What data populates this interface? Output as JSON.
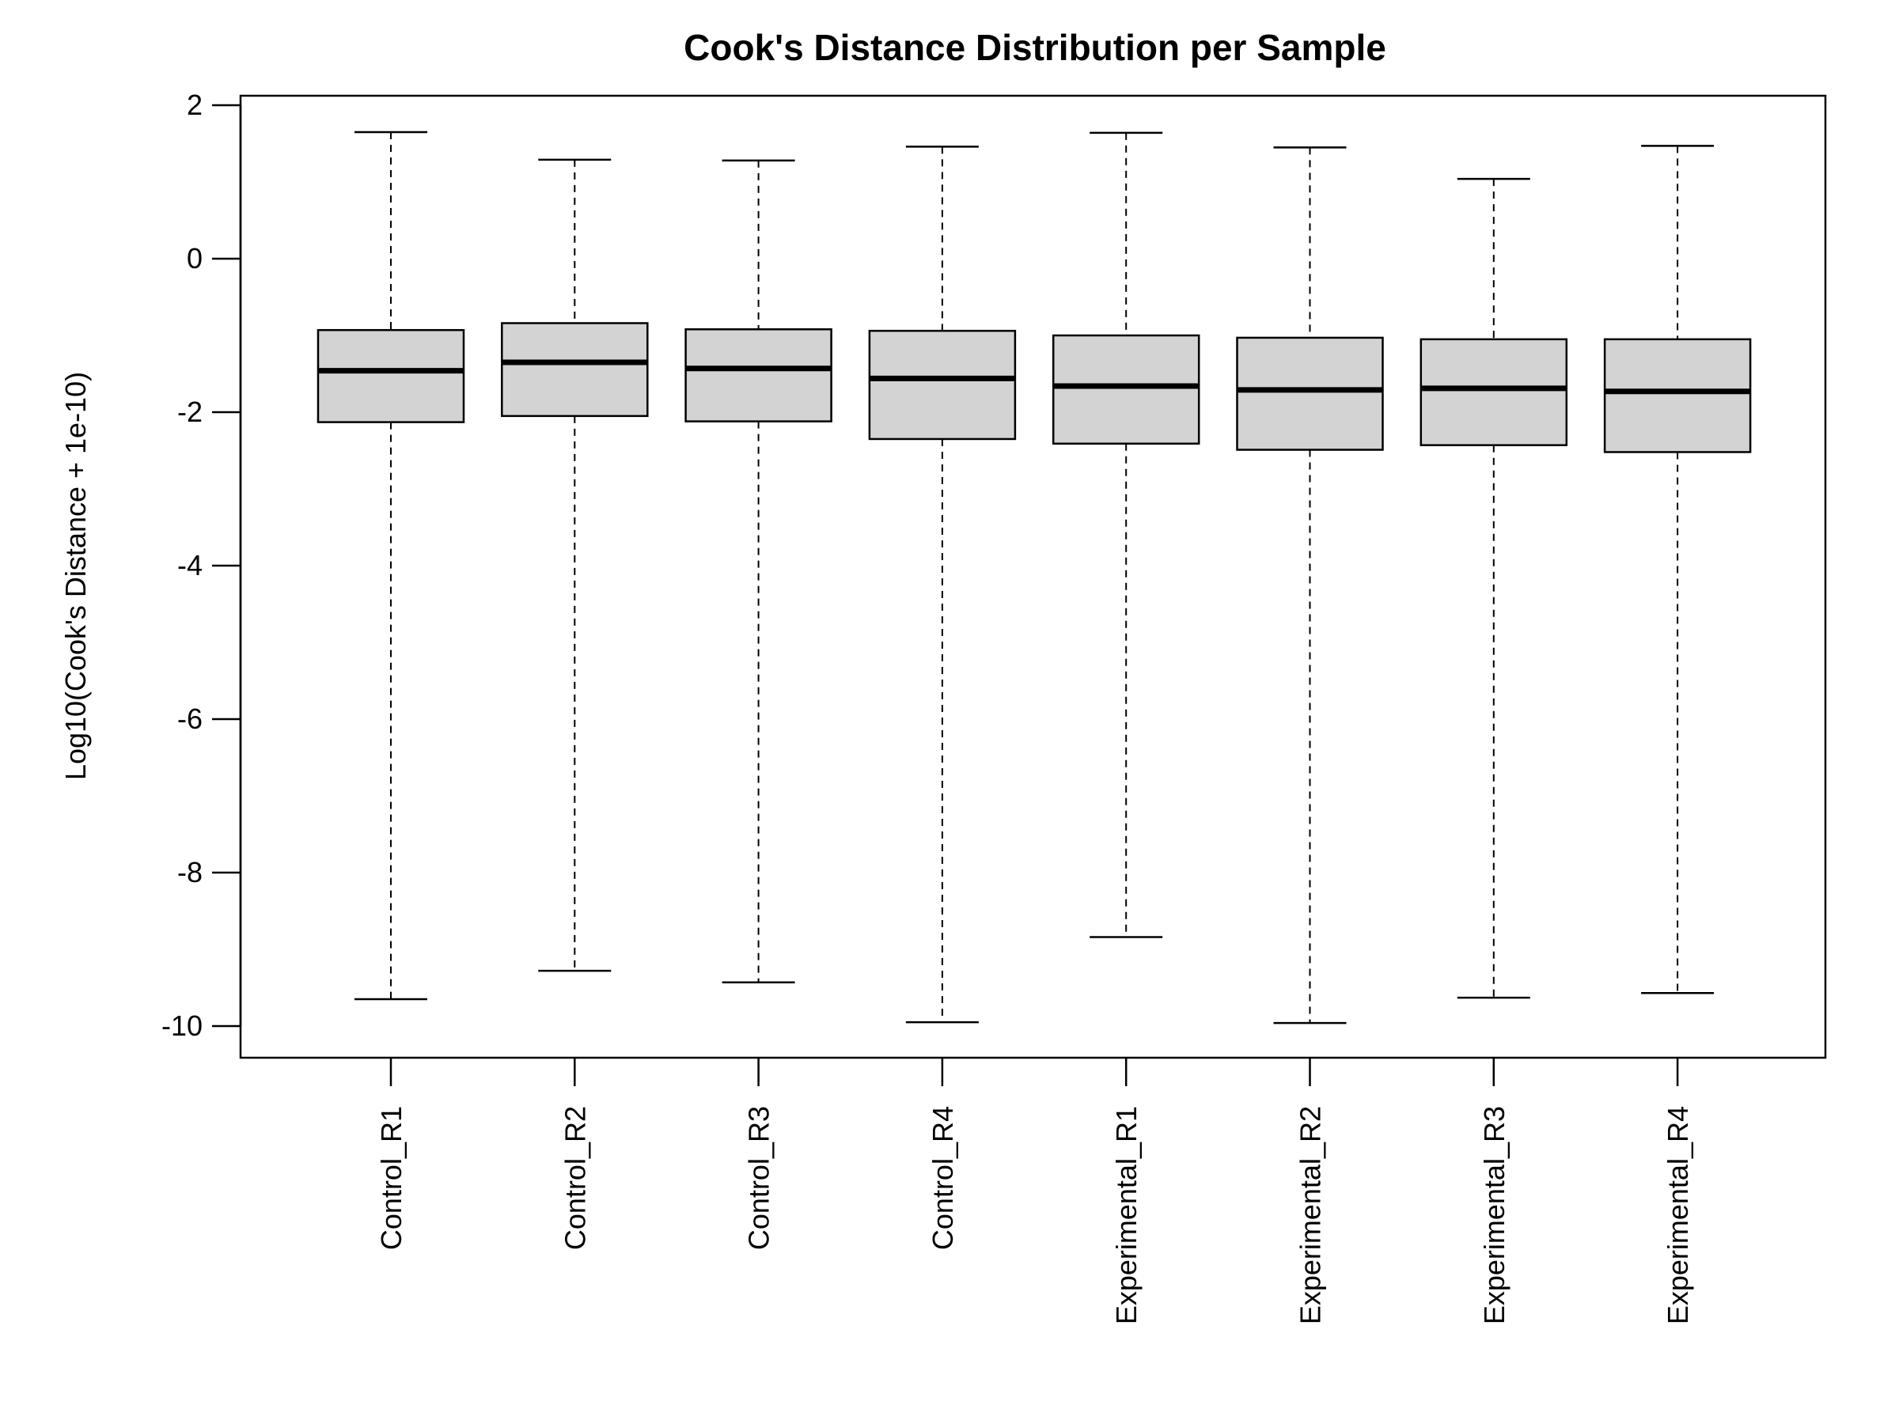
{
  "chart_data": {
    "type": "boxplot",
    "title": "Cook's Distance Distribution per Sample",
    "xlabel": "",
    "ylabel": "Log10(Cook's Distance + 1e-10)",
    "ylim": [
      -10.4,
      2.1
    ],
    "yticks": [
      2,
      0,
      -2,
      -4,
      -6,
      -8,
      -10
    ],
    "ytick_labels": [
      "2",
      "0",
      "-2",
      "-4",
      "-6",
      "-8",
      "-10"
    ],
    "categories": [
      "Control_R1",
      "Control_R2",
      "Control_R3",
      "Control_R4",
      "Experimental_R1",
      "Experimental_R2",
      "Experimental_R3",
      "Experimental_R4"
    ],
    "boxes": [
      {
        "whisker_low": -9.65,
        "q1": -2.13,
        "median": -1.46,
        "q3": -0.93,
        "whisker_high": 1.65
      },
      {
        "whisker_low": -9.28,
        "q1": -2.05,
        "median": -1.35,
        "q3": -0.84,
        "whisker_high": 1.29
      },
      {
        "whisker_low": -9.43,
        "q1": -2.12,
        "median": -1.43,
        "q3": -0.92,
        "whisker_high": 1.28
      },
      {
        "whisker_low": -9.95,
        "q1": -2.35,
        "median": -1.56,
        "q3": -0.94,
        "whisker_high": 1.46
      },
      {
        "whisker_low": -8.84,
        "q1": -2.41,
        "median": -1.66,
        "q3": -1.0,
        "whisker_high": 1.64
      },
      {
        "whisker_low": -9.96,
        "q1": -2.49,
        "median": -1.71,
        "q3": -1.03,
        "whisker_high": 1.45
      },
      {
        "whisker_low": -9.63,
        "q1": -2.43,
        "median": -1.69,
        "q3": -1.05,
        "whisker_high": 1.04
      },
      {
        "whisker_low": -9.57,
        "q1": -2.52,
        "median": -1.73,
        "q3": -1.05,
        "whisker_high": 1.47
      }
    ],
    "box_fill": "#d3d3d3",
    "line_color": "#000000",
    "grid": false,
    "legend": "none"
  }
}
